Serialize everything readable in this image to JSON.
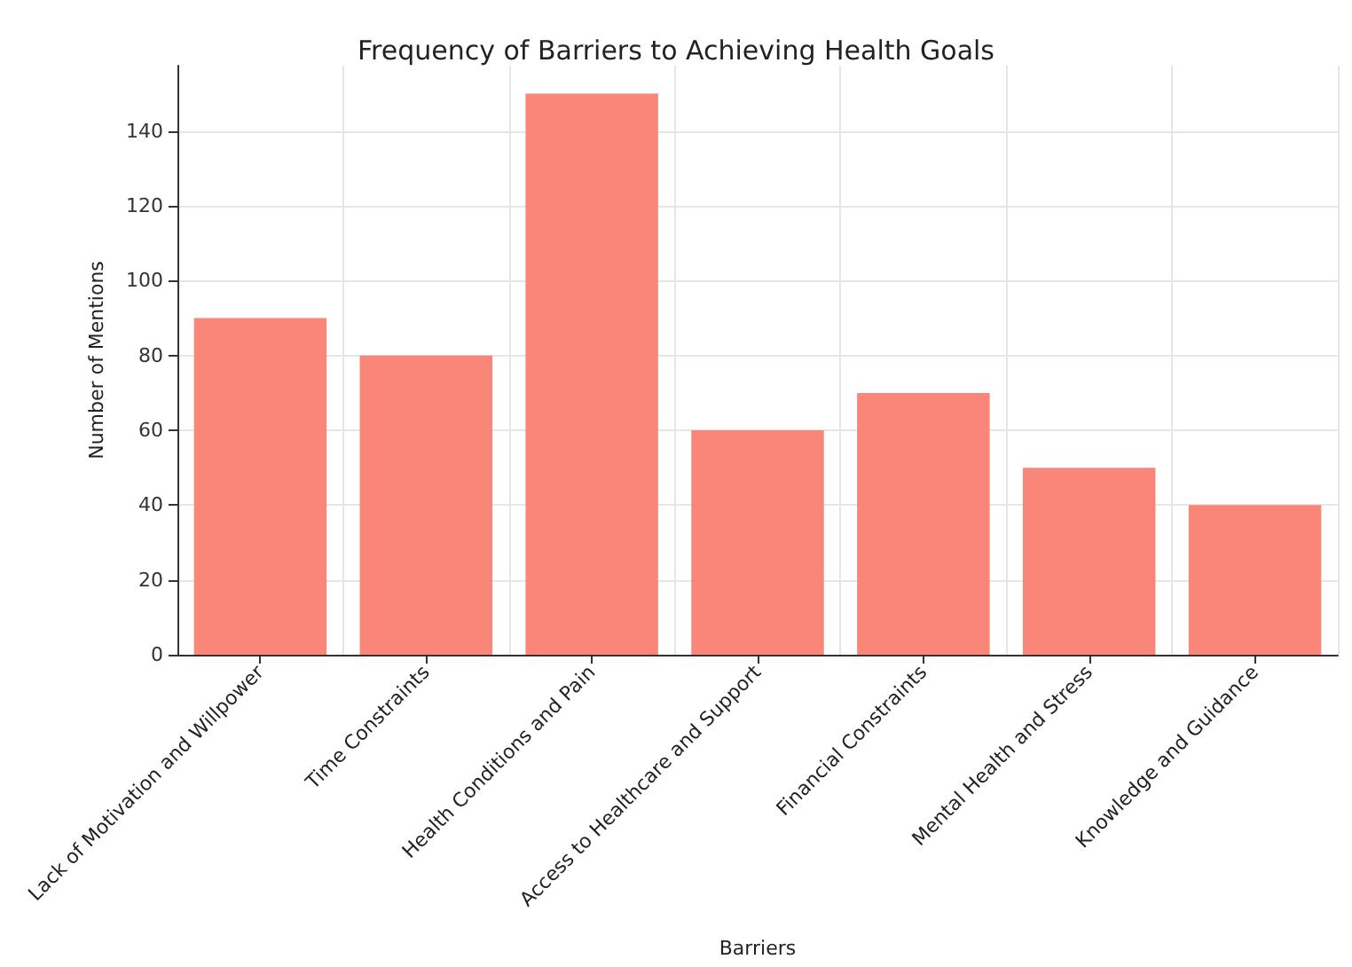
{
  "chart_data": {
    "type": "bar",
    "title": "Frequency of Barriers to Achieving Health Goals",
    "xlabel": "Barriers",
    "ylabel": "Number of Mentions",
    "categories": [
      "Lack of Motivation and Willpower",
      "Time Constraints",
      "Health Conditions and Pain",
      "Access to Healthcare and Support",
      "Financial Constraints",
      "Mental Health and Stress",
      "Knowledge and Guidance"
    ],
    "values": [
      90,
      80,
      150,
      60,
      70,
      50,
      40
    ],
    "color": "#fa8072",
    "ylim": [
      0,
      157.5
    ],
    "yticks": [
      0,
      20,
      40,
      60,
      80,
      100,
      120,
      140
    ],
    "grid": true
  }
}
